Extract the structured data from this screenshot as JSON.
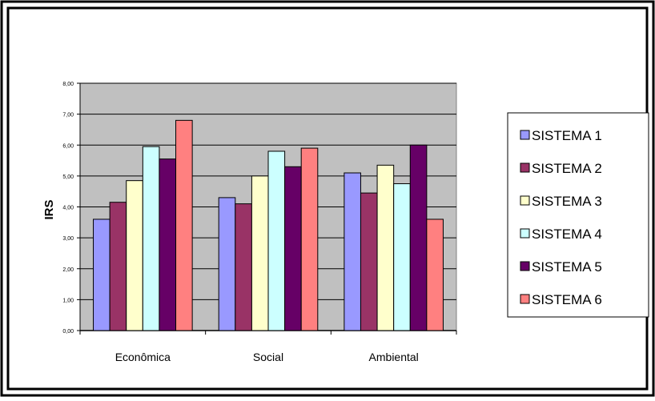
{
  "chart_data": {
    "type": "bar",
    "title": "",
    "xlabel": "",
    "ylabel": "IRS",
    "ylim": [
      0,
      8
    ],
    "ytick_values": [
      0,
      1,
      2,
      3,
      4,
      5,
      6,
      7,
      8
    ],
    "ytick_labels": [
      "0,00",
      "1,00",
      "2,00",
      "3,00",
      "4,00",
      "5,00",
      "6,00",
      "7,00",
      "8,00"
    ],
    "grid": true,
    "legend_position": "right",
    "plot_background": "#c0c0c0",
    "categories": [
      "Econômica",
      "Social",
      "Ambiental"
    ],
    "series": [
      {
        "name": "SISTEMA 1",
        "color": "#9999ff",
        "values": [
          3.6,
          4.3,
          5.1
        ]
      },
      {
        "name": "SISTEMA 2",
        "color": "#993366",
        "values": [
          4.15,
          4.1,
          4.45
        ]
      },
      {
        "name": "SISTEMA 3",
        "color": "#ffffcc",
        "values": [
          4.85,
          5.0,
          5.35
        ]
      },
      {
        "name": "SISTEMA 4",
        "color": "#ccffff",
        "values": [
          5.95,
          5.8,
          4.75
        ]
      },
      {
        "name": "SISTEMA 5",
        "color": "#660066",
        "values": [
          5.55,
          5.3,
          6.0
        ]
      },
      {
        "name": "SISTEMA 6",
        "color": "#ff8080",
        "values": [
          6.8,
          5.9,
          3.6
        ]
      }
    ]
  }
}
